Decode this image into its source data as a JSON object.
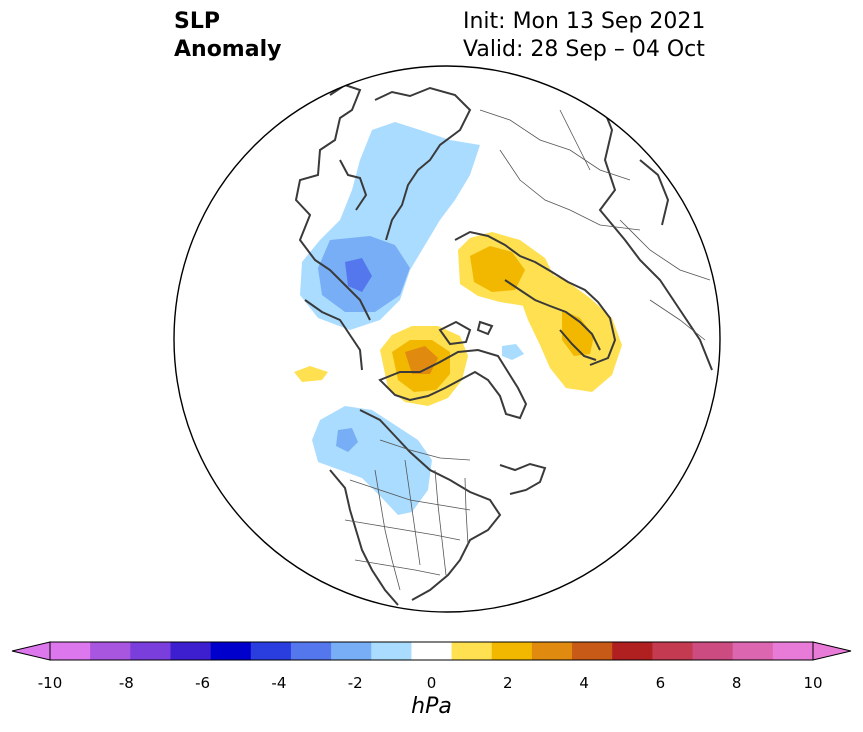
{
  "title": {
    "left_line1": "SLP",
    "left_line2": "Anomaly",
    "init": "Init: Mon 13 Sep 2021",
    "valid": "Valid: 28 Sep – 04 Oct"
  },
  "map": {
    "projection": "north-polar-stereographic",
    "features": [
      {
        "name": "negative-anomaly-north-atlantic",
        "sign": "negative",
        "peak_hpa": -5
      },
      {
        "name": "negative-anomaly-northeast-pacific",
        "sign": "negative",
        "peak_hpa": -4
      },
      {
        "name": "positive-anomaly-arctic-canada-greenland",
        "sign": "positive",
        "peak_hpa": 4
      },
      {
        "name": "positive-anomaly-siberia",
        "sign": "positive",
        "peak_hpa": 3
      },
      {
        "name": "positive-anomaly-central-asia",
        "sign": "positive",
        "peak_hpa": 3
      },
      {
        "name": "positive-anomaly-bering",
        "sign": "positive",
        "peak_hpa": 1
      }
    ]
  },
  "colorbar": {
    "levels": [
      -10,
      -9,
      -8,
      -7,
      -6,
      -5,
      -4,
      -3,
      -2,
      -1,
      1,
      2,
      3,
      4,
      5,
      6,
      7,
      8,
      9,
      10
    ],
    "colors": [
      "#dd77ee",
      "#a855e0",
      "#7a3edc",
      "#3d1fd0",
      "#0000cc",
      "#2a3ee0",
      "#5577ee",
      "#78aef5",
      "#aadcff",
      "#ffffff",
      "#ffe050",
      "#f2b800",
      "#e08a10",
      "#c85a18",
      "#b02020",
      "#c43a50",
      "#cc4c82",
      "#dd66b0",
      "#e87ad8"
    ],
    "ticks": [
      "-10",
      "-8",
      "-6",
      "-4",
      "-2",
      "0",
      "2",
      "4",
      "6",
      "8",
      "10"
    ],
    "unit": "hPa",
    "extend": "both"
  }
}
